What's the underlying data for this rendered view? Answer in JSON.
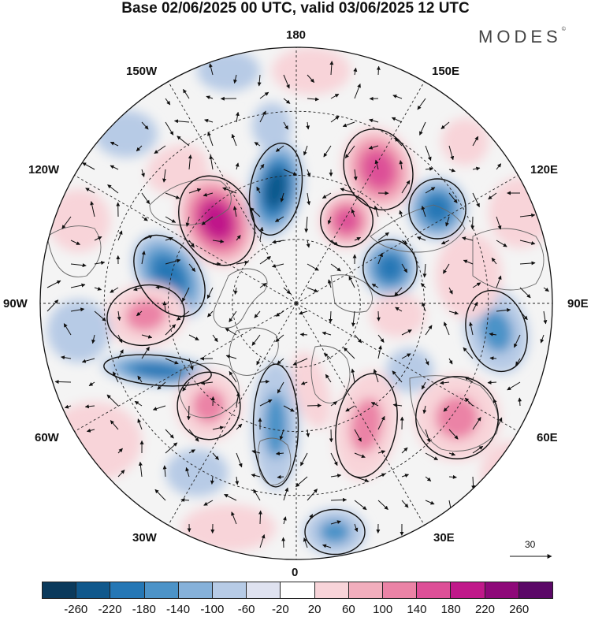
{
  "title": "Base 02/06/2025 00 UTC, valid 03/06/2025 12 UTC",
  "logo": "MODES",
  "logo_mark": "©",
  "longitude_labels": {
    "top": "180",
    "bottom": "0",
    "left": "90W",
    "right": "90E",
    "upper_left_1": "150W",
    "upper_left_2": "120W",
    "upper_right_1": "150E",
    "upper_right_2": "120E",
    "lower_left_1": "60W",
    "lower_left_2": "30W",
    "lower_right_1": "60E",
    "lower_right_2": "30E"
  },
  "reference_vector": "30",
  "colorbar": {
    "labels": [
      "-260",
      "-220",
      "-180",
      "-140",
      "-100",
      "-60",
      "-20",
      "20",
      "60",
      "100",
      "140",
      "180",
      "220",
      "260"
    ],
    "colors": [
      "#0b3a5c",
      "#10588c",
      "#2577b5",
      "#4c93c8",
      "#86b1d9",
      "#b7cbe6",
      "#dfe2f0",
      "#ffffff",
      "#f8d4d9",
      "#f2aebd",
      "#eb83a6",
      "#dd4f97",
      "#c0198a",
      "#8e0979",
      "#5b0867"
    ]
  },
  "colors": {
    "land_mask": "#ececec",
    "ocean": "#ffffff",
    "grid": "#222222"
  }
}
